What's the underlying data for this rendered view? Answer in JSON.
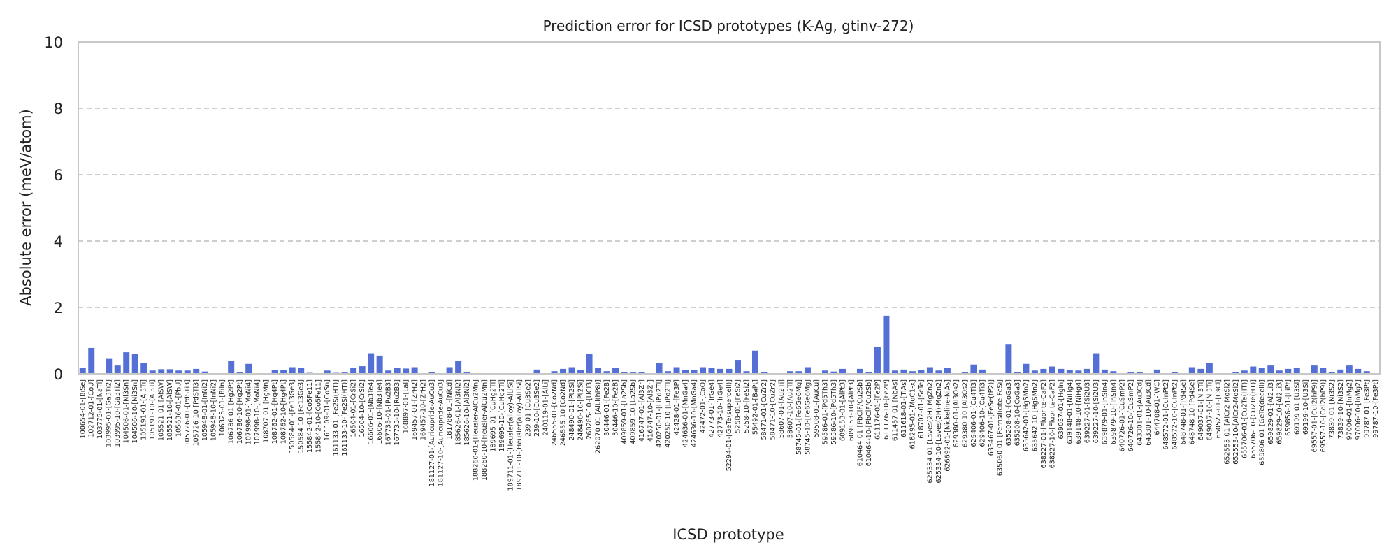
{
  "chart_data": {
    "type": "bar",
    "title": "Prediction error for ICSD prototypes (K-Ag, gtinv-272)",
    "xlabel": "ICSD prototype",
    "ylabel": "Absolute error (meV/atom)",
    "ylim": [
      0,
      10
    ],
    "yticks": [
      0,
      2,
      4,
      6,
      8,
      10
    ],
    "grid": "y",
    "bar_color": "#5470d6",
    "categories": [
      "100654-01-[BiSe]",
      "102712-01-[CoU]",
      "103775-01-[NaTl]",
      "103995-01-[Ga3Ti2]",
      "103995-10-[Ga3Ti2]",
      "104506-01-[Ni3Sn]",
      "104506-10-[Ni3Sn]",
      "105191-01-[Al3Ti]",
      "105191-10-[Al3Ti]",
      "105521-01-[AlSW]",
      "105521-10-[AlSW]",
      "105636-01-[PbU]",
      "105726-01-[PdSTi3]",
      "105726-10-[PdSTi3]",
      "105948-01-[InNi2]",
      "105948-10-[InNi2]",
      "106325-01-[BiIn]",
      "106786-01-[Hg2Pt]",
      "106786-10-[Hg2Pt]",
      "107998-01-[MoNi4]",
      "107998-10-[MoNi4]",
      "108707-01-[HgMn]",
      "108762-01-[Hg4Pt]",
      "108762-10-[Hg4Pt]",
      "150584-01-[Fe13Ge3]",
      "150584-10-[Fe13Ge3]",
      "155842-01-[Co5Fe11]",
      "155842-10-[Co5Fe11]",
      "161109-01-[CoSn]",
      "161133-01-[Fe2Si(HT)]",
      "161133-10-[Fe2Si(HT)]",
      "16504-01-[CrSi2]",
      "16504-10-[CrSi2]",
      "16606-01-[Nb3Te4]",
      "16606-10-[Nb3Te4]",
      "167735-01-[Ru2B3]",
      "167735-10-[Ru2B3]",
      "168897-01-[LaI]",
      "169457-01-[ZrH2]",
      "169457-10-[ZrH2]",
      "181127-01-[Auricupride-AuCu3]",
      "181127-10-[Auricupride-AuCu3]",
      "181788-01-[NiCd]",
      "185626-01-[Al3Ni2]",
      "185626-10-[Al3Ni2]",
      "188260-01-[Heusler-AlCu2Mn]",
      "188260-10-[Heusler-AlCu2Mn]",
      "189695-01-[CuHg2Ti]",
      "189695-10-[CuHg2Ti]",
      "189711-01-[Heusler(alloy)-AlLiSi]",
      "189711-10-[Heusler(alloy)-AlLiSi]",
      "239-01-[Cu3Se2]",
      "239-10-[Cu3Se2]",
      "240119-01-[AlLi]",
      "246555-01-[Co2Nd]",
      "246555-10-[Co2Nd]",
      "248490-01-[Pt2Si]",
      "248490-10-[Pt2Si]",
      "260285-10-[UCl3]",
      "262070-01-[AlLi(hP8)]",
      "30446-01-[Fe2B]",
      "30446-10-[Fe2B]",
      "409859-01-[La2Sb]",
      "409859-10-[La2Sb]",
      "416747-01-[Al3Zr]",
      "416747-10-[Al3Zr]",
      "420250-01-[LiPd2Tl]",
      "420250-10-[LiPd2Tl]",
      "42428-01-[Fe3P]",
      "424636-01-[MnGa4]",
      "424636-10-[MnGa4]",
      "42472-01-[CoO]",
      "42773-01-[IrGe4]",
      "42773-10-[IrGe4]",
      "52294-01-[GeTe(supercell)]",
      "5258-01-[FeSi2]",
      "5258-10-[FeSi2]",
      "55492-01-[BaPt]",
      "58471-01-[CuZr2]",
      "58471-10-[CuZr2]",
      "58607-01-[Au2Ti]",
      "58607-10-[Au2Ti]",
      "58745-01-[Fe6Ge6Mg]",
      "58745-10-[Fe6Ge6Mg]",
      "59508-01-[AuCu]",
      "59586-01-[Pd5Th3]",
      "59586-10-[Pd5Th3]",
      "609153-01-[AlPt3]",
      "609153-10-[AlPt3]",
      "610464-01-[PbClF/Cu2Sb]",
      "610464-10-[PbClF/Cu2Sb]",
      "611176-01-[Fe2P]",
      "611176-10-[Fe2P]",
      "611457-01-[NbAs]",
      "611618-01-[TiAs]",
      "618295-01-[MoC1-x]",
      "618702-01-[ScTe]",
      "625334-01-[Laves(2H)-MgZn2]",
      "625334-10-[Laves(2H)-MgZn2]",
      "626692-01-[Nickeline-NiAs]",
      "629380-01-[Al3Os2]",
      "629380-10-[Al3Os2]",
      "629406-01-[Cu4Ti3]",
      "629406-10-[Cu4Ti3]",
      "633467-01-[FeSe(tP2)]",
      "635060-01-[Ferrisilicite-FeSi]",
      "635208-01-[CoGa3]",
      "635208-10-[CoGa3]",
      "635642-01-[HgSMn2]",
      "635642-10-[HgSMn2]",
      "638227-01-[Fluorite-CaF2]",
      "638227-10-[Fluorite-CaF2]",
      "639037-01-[HgIn]",
      "639148-01-[NiHg4]",
      "639148-10-[NiHg4]",
      "639227-01-[Si2U3]",
      "639227-10-[Si2U3]",
      "639879-01-[InSIn4]",
      "639879-10-[InSIn4]",
      "640726-01-[CuSmP2]",
      "640726-10-[CuSmP2]",
      "643301-01-[Au3Cd]",
      "643301-10-[Au3Cd]",
      "644708-01-[WC]",
      "648572-01-[CuInPt2]",
      "648572-10-[CuInPt2]",
      "648748-01-[Pd4Se]",
      "648748-10-[Pd4Se]",
      "649037-01-[Ni3Ti]",
      "649037-10-[Ni3Ti]",
      "650527-01-[CsCl]",
      "652553-01-[AlCr2-MoSi2]",
      "652553-10-[AlCr2-MoSi2]",
      "655706-01-[Cu2Te(HT)]",
      "655706-10-[Cu2Te(HT)]",
      "659806-01-[GeTe(decell)]",
      "659829-01-[Al2Li3]",
      "659829-10-[Al2Li3]",
      "659856-01-[LiPt]",
      "69199-01-[U3Si]",
      "69199-10-[U3Si]",
      "69557-01-[CdI2(hP9)]",
      "69557-10-[CdI2(hP9)]",
      "73839-01-[Ni3S2]",
      "73839-10-[Ni3S2]",
      "97006-01-[InMg2]",
      "97006-10-[InMg2]",
      "99787-01-[Fe3Pt]",
      "99787-10-[Fe3Pt]"
    ],
    "values": [
      0.18,
      0.78,
      0.02,
      0.45,
      0.25,
      0.65,
      0.6,
      0.33,
      0.1,
      0.14,
      0.14,
      0.1,
      0.1,
      0.15,
      0.07,
      0.02,
      0.02,
      0.4,
      0.05,
      0.3,
      0.02,
      0.02,
      0.12,
      0.12,
      0.2,
      0.18,
      0.03,
      0.02,
      0.1,
      0.03,
      0.04,
      0.18,
      0.23,
      0.62,
      0.55,
      0.1,
      0.17,
      0.16,
      0.2,
      0.02,
      0.05,
      0.02,
      0.2,
      0.38,
      0.05,
      0.02,
      0.02,
      0.01,
      0.01,
      0.01,
      0.01,
      0.01,
      0.13,
      0.02,
      0.08,
      0.15,
      0.2,
      0.12,
      0.6,
      0.17,
      0.08,
      0.17,
      0.06,
      0.04,
      0.06,
      0.02,
      0.33,
      0.08,
      0.2,
      0.12,
      0.12,
      0.2,
      0.18,
      0.15,
      0.15,
      0.42,
      0.08,
      0.7,
      0.05,
      0.02,
      0.02,
      0.08,
      0.08,
      0.2,
      0.02,
      0.1,
      0.07,
      0.15,
      0.02,
      0.15,
      0.05,
      0.8,
      1.75,
      0.1,
      0.13,
      0.08,
      0.12,
      0.2,
      0.1,
      0.17,
      0.02,
      0.05,
      0.28,
      0.13,
      0.02,
      0.02,
      0.88,
      0.05,
      0.3,
      0.1,
      0.15,
      0.22,
      0.15,
      0.12,
      0.1,
      0.15,
      0.62,
      0.13,
      0.08,
      0.02,
      0.05,
      0.05,
      0.02,
      0.13,
      0.02,
      0.05,
      0.02,
      0.2,
      0.15,
      0.33,
      0.02,
      0.02,
      0.05,
      0.1,
      0.22,
      0.18,
      0.25,
      0.1,
      0.15,
      0.18,
      0.02,
      0.25,
      0.18,
      0.05,
      0.13,
      0.25,
      0.15,
      0.08,
      0.02
    ]
  }
}
